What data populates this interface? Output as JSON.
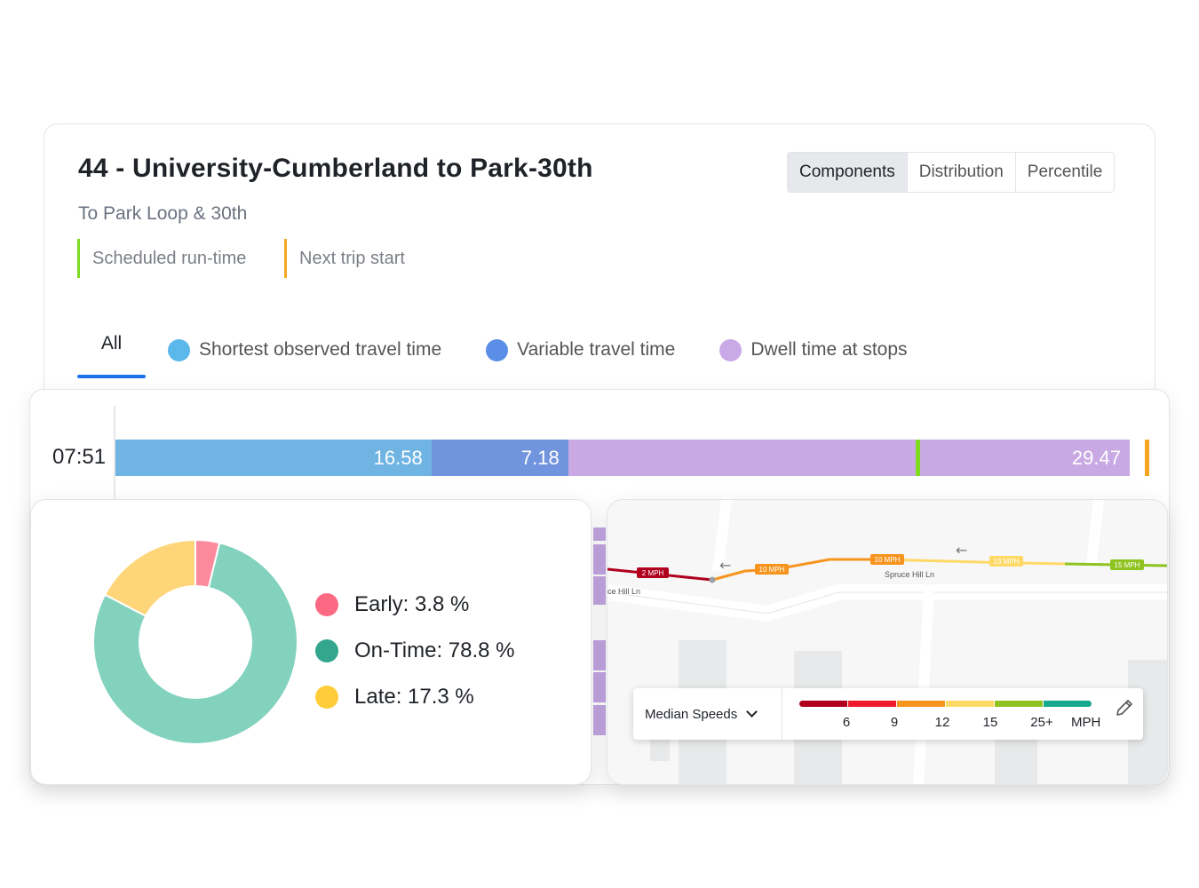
{
  "route": {
    "title": "44 - University-Cumberland to Park-30th",
    "subtitle": "To Park Loop & 30th"
  },
  "legend": {
    "scheduled": "Scheduled run-time",
    "next_trip": "Next trip start",
    "scheduled_color": "#7ddc1f",
    "next_trip_color": "#f5a623"
  },
  "view_toggle": {
    "options": [
      "Components",
      "Distribution",
      "Percentile"
    ],
    "selected": "Components"
  },
  "tabs": {
    "all": "All",
    "items": [
      {
        "label": "Shortest observed travel time",
        "color": "#5bb8ea"
      },
      {
        "label": "Variable travel time",
        "color": "#5b8ee6"
      },
      {
        "label": "Dwell time at stops",
        "color": "#c9a9e6"
      }
    ]
  },
  "trip_bar": {
    "time": "07:51",
    "segments": [
      {
        "value": 16.58,
        "label": "16.58",
        "color": "#6fb4e3"
      },
      {
        "value": 7.18,
        "label": "7.18",
        "color": "#7194de"
      },
      {
        "value": 29.47,
        "label": "29.47",
        "color": "#c8a9e3"
      }
    ]
  },
  "otp": {
    "items": [
      {
        "label": "Early: 3.8 %",
        "value": 3.8,
        "color": "#fd8a9c",
        "dot": "#fb6a82"
      },
      {
        "label": "On-Time: 78.8 %",
        "value": 78.8,
        "color": "#82d2bd",
        "dot": "#33a68d"
      },
      {
        "label": "Late: 17.3 %",
        "value": 17.3,
        "color": "#ffd57a",
        "dot": "#ffcd3a"
      }
    ]
  },
  "map": {
    "street_main": "Spruce Hill Ln",
    "street_left": "ce Hill Ln",
    "speed_labels": [
      "2 MPH",
      "10 MPH",
      "10 MPH",
      "13 MPH",
      "15 MPH"
    ],
    "speed_select": "Median Speeds",
    "scale_colors": [
      "#b0001e",
      "#ef1a2d",
      "#f7941d",
      "#ffd966",
      "#8fc31f",
      "#17a98d"
    ],
    "scale_ticks": [
      "6",
      "9",
      "12",
      "15",
      "25+"
    ],
    "unit": "MPH"
  }
}
